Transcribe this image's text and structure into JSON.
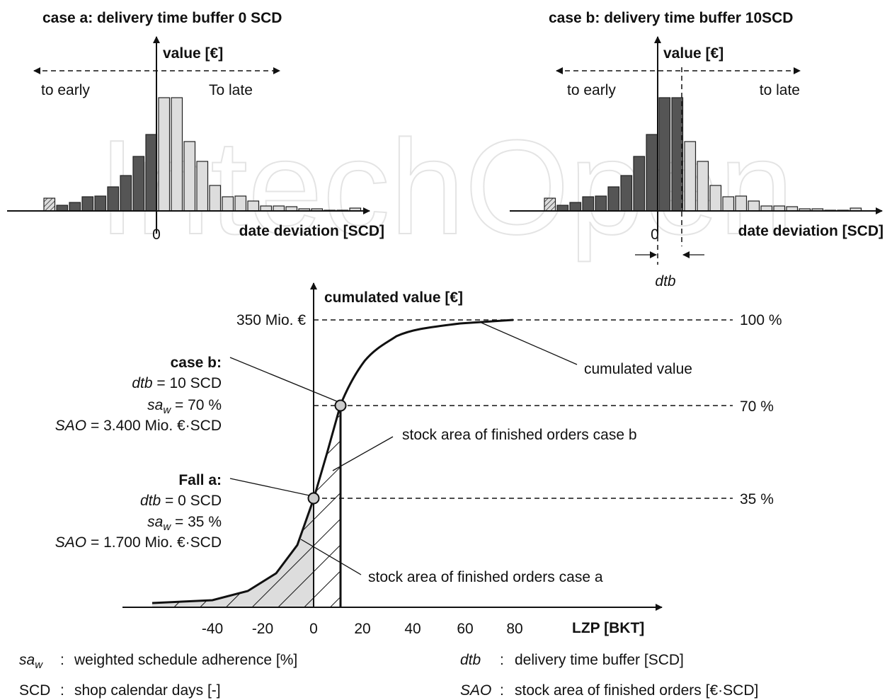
{
  "watermark": "IntechOpen",
  "case_a_histogram": {
    "title": "case a: delivery time buffer 0 SCD",
    "y_axis": "value [€]",
    "early": "to early",
    "late": "To late",
    "zero": "0",
    "x_axis": "date deviation [SCD]"
  },
  "case_b_histogram": {
    "title": "case b: delivery time buffer 10SCD",
    "y_axis": "value [€]",
    "early": "to early",
    "late": "to late",
    "zero": "0",
    "x_axis": "date deviation [SCD]",
    "dtb": "dtb"
  },
  "cumulative_chart": {
    "y_axis": "cumulated value [€]",
    "x_axis": "LZP [BKT]",
    "x_ticks": [
      "-40",
      "-20",
      "0",
      "20",
      "40",
      "60",
      "80"
    ],
    "y_top_label": "350 Mio. €",
    "levels": [
      "100 %",
      "70 %",
      "35 %"
    ],
    "curve_label": "cumulated value",
    "stock_b_label": "stock area of finished orders case b",
    "stock_a_label": "stock area of finished orders case a",
    "case_b": {
      "heading": "case b:",
      "dtb": "dtb",
      "dtb_value": " = 10 SCD",
      "sa": "sa",
      "sub": "w",
      "sa_value": " = 70 %",
      "sao": "SAO",
      "sao_value": " = 3.400 Mio. €·SCD"
    },
    "case_a": {
      "heading": "Fall a:",
      "dtb": "dtb",
      "dtb_value": " = 0 SCD",
      "sa": "sa",
      "sub": "w",
      "sa_value": " = 35 %",
      "sao": "SAO",
      "sao_value": " = 1.700 Mio. €·SCD"
    }
  },
  "legend": [
    {
      "symbol": "sa",
      "sub": "w",
      "sep": ":",
      "text": "weighted schedule adherence [%]"
    },
    {
      "symbol": "SCD",
      "sep": ":",
      "text": "shop calendar days [-]"
    },
    {
      "symbol": "dtb",
      "sep": ":",
      "text": "delivery time buffer [SCD]"
    },
    {
      "symbol": "SAO",
      "sep": ":",
      "text": "stock area of finished orders [€·SCD]"
    }
  ]
}
